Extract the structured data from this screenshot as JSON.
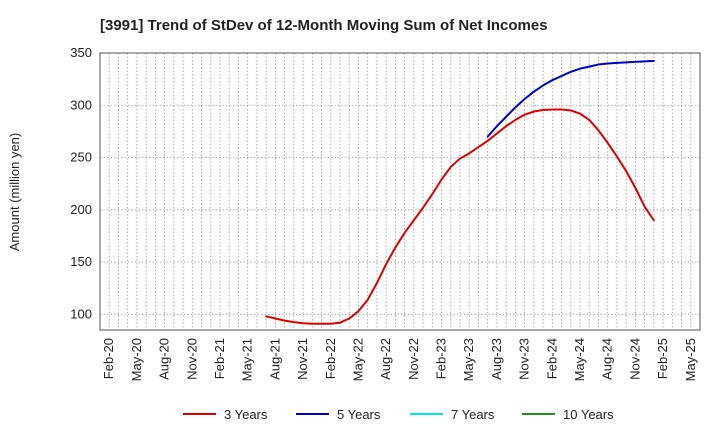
{
  "chart_data": {
    "type": "line",
    "title": "[3991]  Trend of StDev of 12-Month Moving Sum of Net Incomes",
    "xlabel": "",
    "ylabel": "Amount (million yen)",
    "ylim": [
      85,
      350
    ],
    "yticks": [
      100,
      150,
      200,
      250,
      300,
      350
    ],
    "xticks": [
      "Feb-20",
      "May-20",
      "Aug-20",
      "Nov-20",
      "Feb-21",
      "May-21",
      "Aug-21",
      "Nov-21",
      "Feb-22",
      "May-22",
      "Aug-22",
      "Nov-22",
      "Feb-23",
      "May-23",
      "Aug-23",
      "Nov-23",
      "Feb-24",
      "May-24",
      "Aug-24",
      "Nov-24",
      "Feb-25",
      "May-25"
    ],
    "grid": true,
    "legend_position": "bottom",
    "series": [
      {
        "name": "3 Years",
        "color": "#dd0000",
        "points": [
          [
            "Jul-21",
            98
          ],
          [
            "Aug-21",
            96
          ],
          [
            "Sep-21",
            94
          ],
          [
            "Oct-21",
            92.5
          ],
          [
            "Nov-21",
            91.5
          ],
          [
            "Dec-21",
            91
          ],
          [
            "Jan-22",
            91
          ],
          [
            "Feb-22",
            91
          ],
          [
            "Mar-22",
            92
          ],
          [
            "Apr-22",
            96
          ],
          [
            "May-22",
            103
          ],
          [
            "Jun-22",
            114
          ],
          [
            "Jul-22",
            130
          ],
          [
            "Aug-22",
            148
          ],
          [
            "Sep-22",
            164
          ],
          [
            "Oct-22",
            178
          ],
          [
            "Nov-22",
            190
          ],
          [
            "Dec-22",
            202
          ],
          [
            "Jan-23",
            215
          ],
          [
            "Feb-23",
            229
          ],
          [
            "Mar-23",
            241
          ],
          [
            "Apr-23",
            249
          ],
          [
            "May-23",
            254
          ],
          [
            "Jun-23",
            260
          ],
          [
            "Jul-23",
            266
          ],
          [
            "Aug-23",
            273
          ],
          [
            "Sep-23",
            280
          ],
          [
            "Oct-23",
            286
          ],
          [
            "Nov-23",
            291
          ],
          [
            "Dec-23",
            294
          ],
          [
            "Jan-24",
            295.5
          ],
          [
            "Feb-24",
            296
          ],
          [
            "Mar-24",
            296
          ],
          [
            "Apr-24",
            295
          ],
          [
            "May-24",
            292
          ],
          [
            "Jun-24",
            286
          ],
          [
            "Jul-24",
            276
          ],
          [
            "Aug-24",
            264
          ],
          [
            "Sep-24",
            251
          ],
          [
            "Oct-24",
            237
          ],
          [
            "Nov-24",
            221
          ],
          [
            "Dec-24",
            203
          ],
          [
            "Jan-25",
            190
          ]
        ]
      },
      {
        "name": "5 Years",
        "color": "#0000cc",
        "points": [
          [
            "Jul-23",
            270
          ],
          [
            "Aug-23",
            280
          ],
          [
            "Sep-23",
            289
          ],
          [
            "Oct-23",
            298
          ],
          [
            "Nov-23",
            306
          ],
          [
            "Dec-23",
            313
          ],
          [
            "Jan-24",
            319
          ],
          [
            "Feb-24",
            324
          ],
          [
            "Mar-24",
            328
          ],
          [
            "Apr-24",
            332
          ],
          [
            "May-24",
            335
          ],
          [
            "Jun-24",
            337
          ],
          [
            "Jul-24",
            339
          ],
          [
            "Aug-24",
            340
          ],
          [
            "Sep-24",
            340.5
          ],
          [
            "Oct-24",
            341
          ],
          [
            "Nov-24",
            341.5
          ],
          [
            "Dec-24",
            342
          ],
          [
            "Jan-25",
            342.5
          ]
        ]
      },
      {
        "name": "7 Years",
        "color": "#00e5ee",
        "points": []
      },
      {
        "name": "10 Years",
        "color": "#228b22",
        "points": []
      }
    ]
  }
}
